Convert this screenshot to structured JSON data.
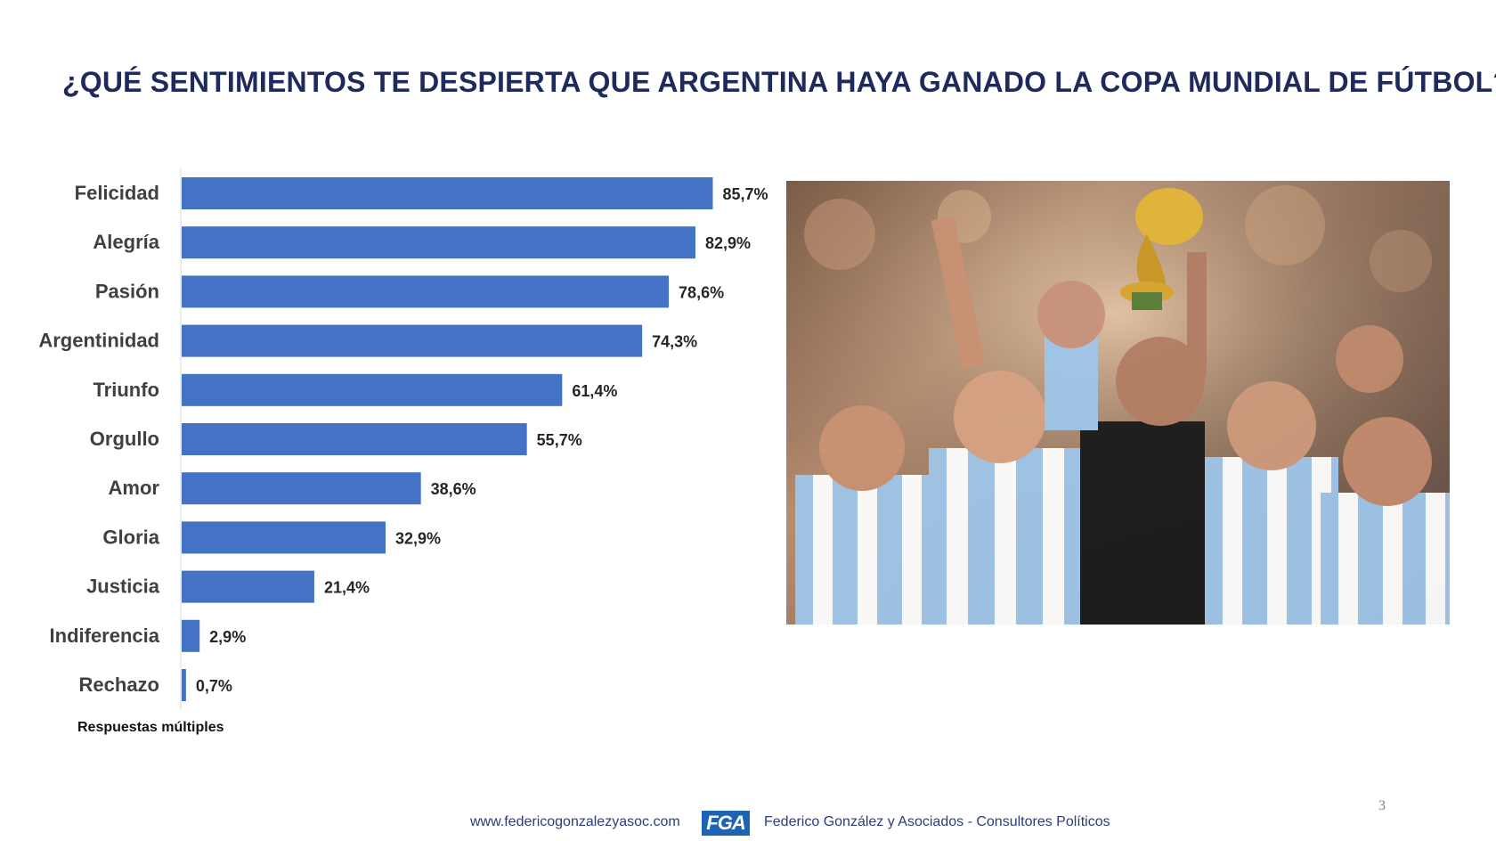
{
  "slide": {
    "title": "¿QUÉ SENTIMIENTOS TE DESPIERTA QUE ARGENTINA HAYA GANADO LA COPA MUNDIAL DE FÚTBOL?",
    "note": "Respuestas múltiples",
    "page_number": "3"
  },
  "footer": {
    "url": "www.federicogonzalezyasoc.com",
    "logo_text": "FGA",
    "company": "Federico González y Asociados - Consultores Políticos"
  },
  "photo": {
    "alt": "Jugadores de la selección argentina celebrando con la Copa del Mundo"
  },
  "colors": {
    "bar": "#4472c4",
    "title": "#1f2a5c",
    "label": "#404040",
    "value": "#262626",
    "axis": "#d9d9d9"
  },
  "chart_data": {
    "type": "bar",
    "orientation": "horizontal",
    "title": "",
    "xlabel": "",
    "ylabel": "",
    "xlim": [
      0,
      100
    ],
    "unit": "%",
    "categories": [
      "Felicidad",
      "Alegría",
      "Pasión",
      "Argentinidad",
      "Triunfo",
      "Orgullo",
      "Amor",
      "Gloria",
      "Justicia",
      "Indiferencia",
      "Rechazo"
    ],
    "values": [
      85.7,
      82.9,
      78.6,
      74.3,
      61.4,
      55.7,
      38.6,
      32.9,
      21.4,
      2.9,
      0.7
    ],
    "value_labels": [
      "85,7%",
      "82,9%",
      "78,6%",
      "74,3%",
      "61,4%",
      "55,7%",
      "38,6%",
      "32,9%",
      "21,4%",
      "2,9%",
      "0,7%"
    ],
    "grid": false,
    "legend": "none"
  }
}
